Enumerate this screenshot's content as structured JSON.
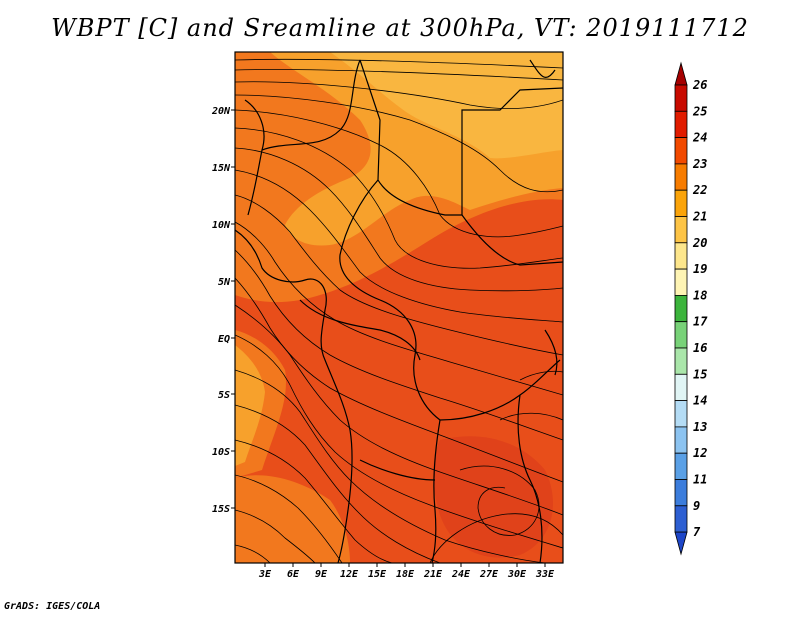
{
  "title": "WBPT [C] and Sreamline at 300hPa, VT: 2019111712",
  "credit": "GrADS: IGES/COLA",
  "map": {
    "lat_labels": [
      "20N",
      "15N",
      "10N",
      "5N",
      "EQ",
      "5S",
      "10S",
      "15S"
    ],
    "lon_labels": [
      "3E",
      "6E",
      "9E",
      "12E",
      "15E",
      "18E",
      "21E",
      "24E",
      "27E",
      "30E",
      "33E"
    ],
    "field": "WBPT [C]",
    "level": "300hPa"
  },
  "colorbar": {
    "labels": [
      "26",
      "25",
      "24",
      "23",
      "22",
      "21",
      "20",
      "19",
      "18",
      "17",
      "16",
      "15",
      "14",
      "13",
      "12",
      "11",
      "9",
      "7"
    ],
    "colors": [
      "#a50000",
      "#c80a00",
      "#e11c00",
      "#f24a00",
      "#f77c00",
      "#fba40a",
      "#fdc446",
      "#fde68c",
      "#fef4b4",
      "#3cb43c",
      "#78d278",
      "#aae6aa",
      "#e1f5f5",
      "#b4dcf5",
      "#8cc3f0",
      "#5aa0e6",
      "#3c7ddc",
      "#2d5fd2",
      "#1e46c8"
    ]
  },
  "colors": {
    "dominant_red": "#e84e1a",
    "orange": "#f2781e",
    "light_orange": "#f7a12c",
    "yellow_orange": "#f9b640"
  }
}
